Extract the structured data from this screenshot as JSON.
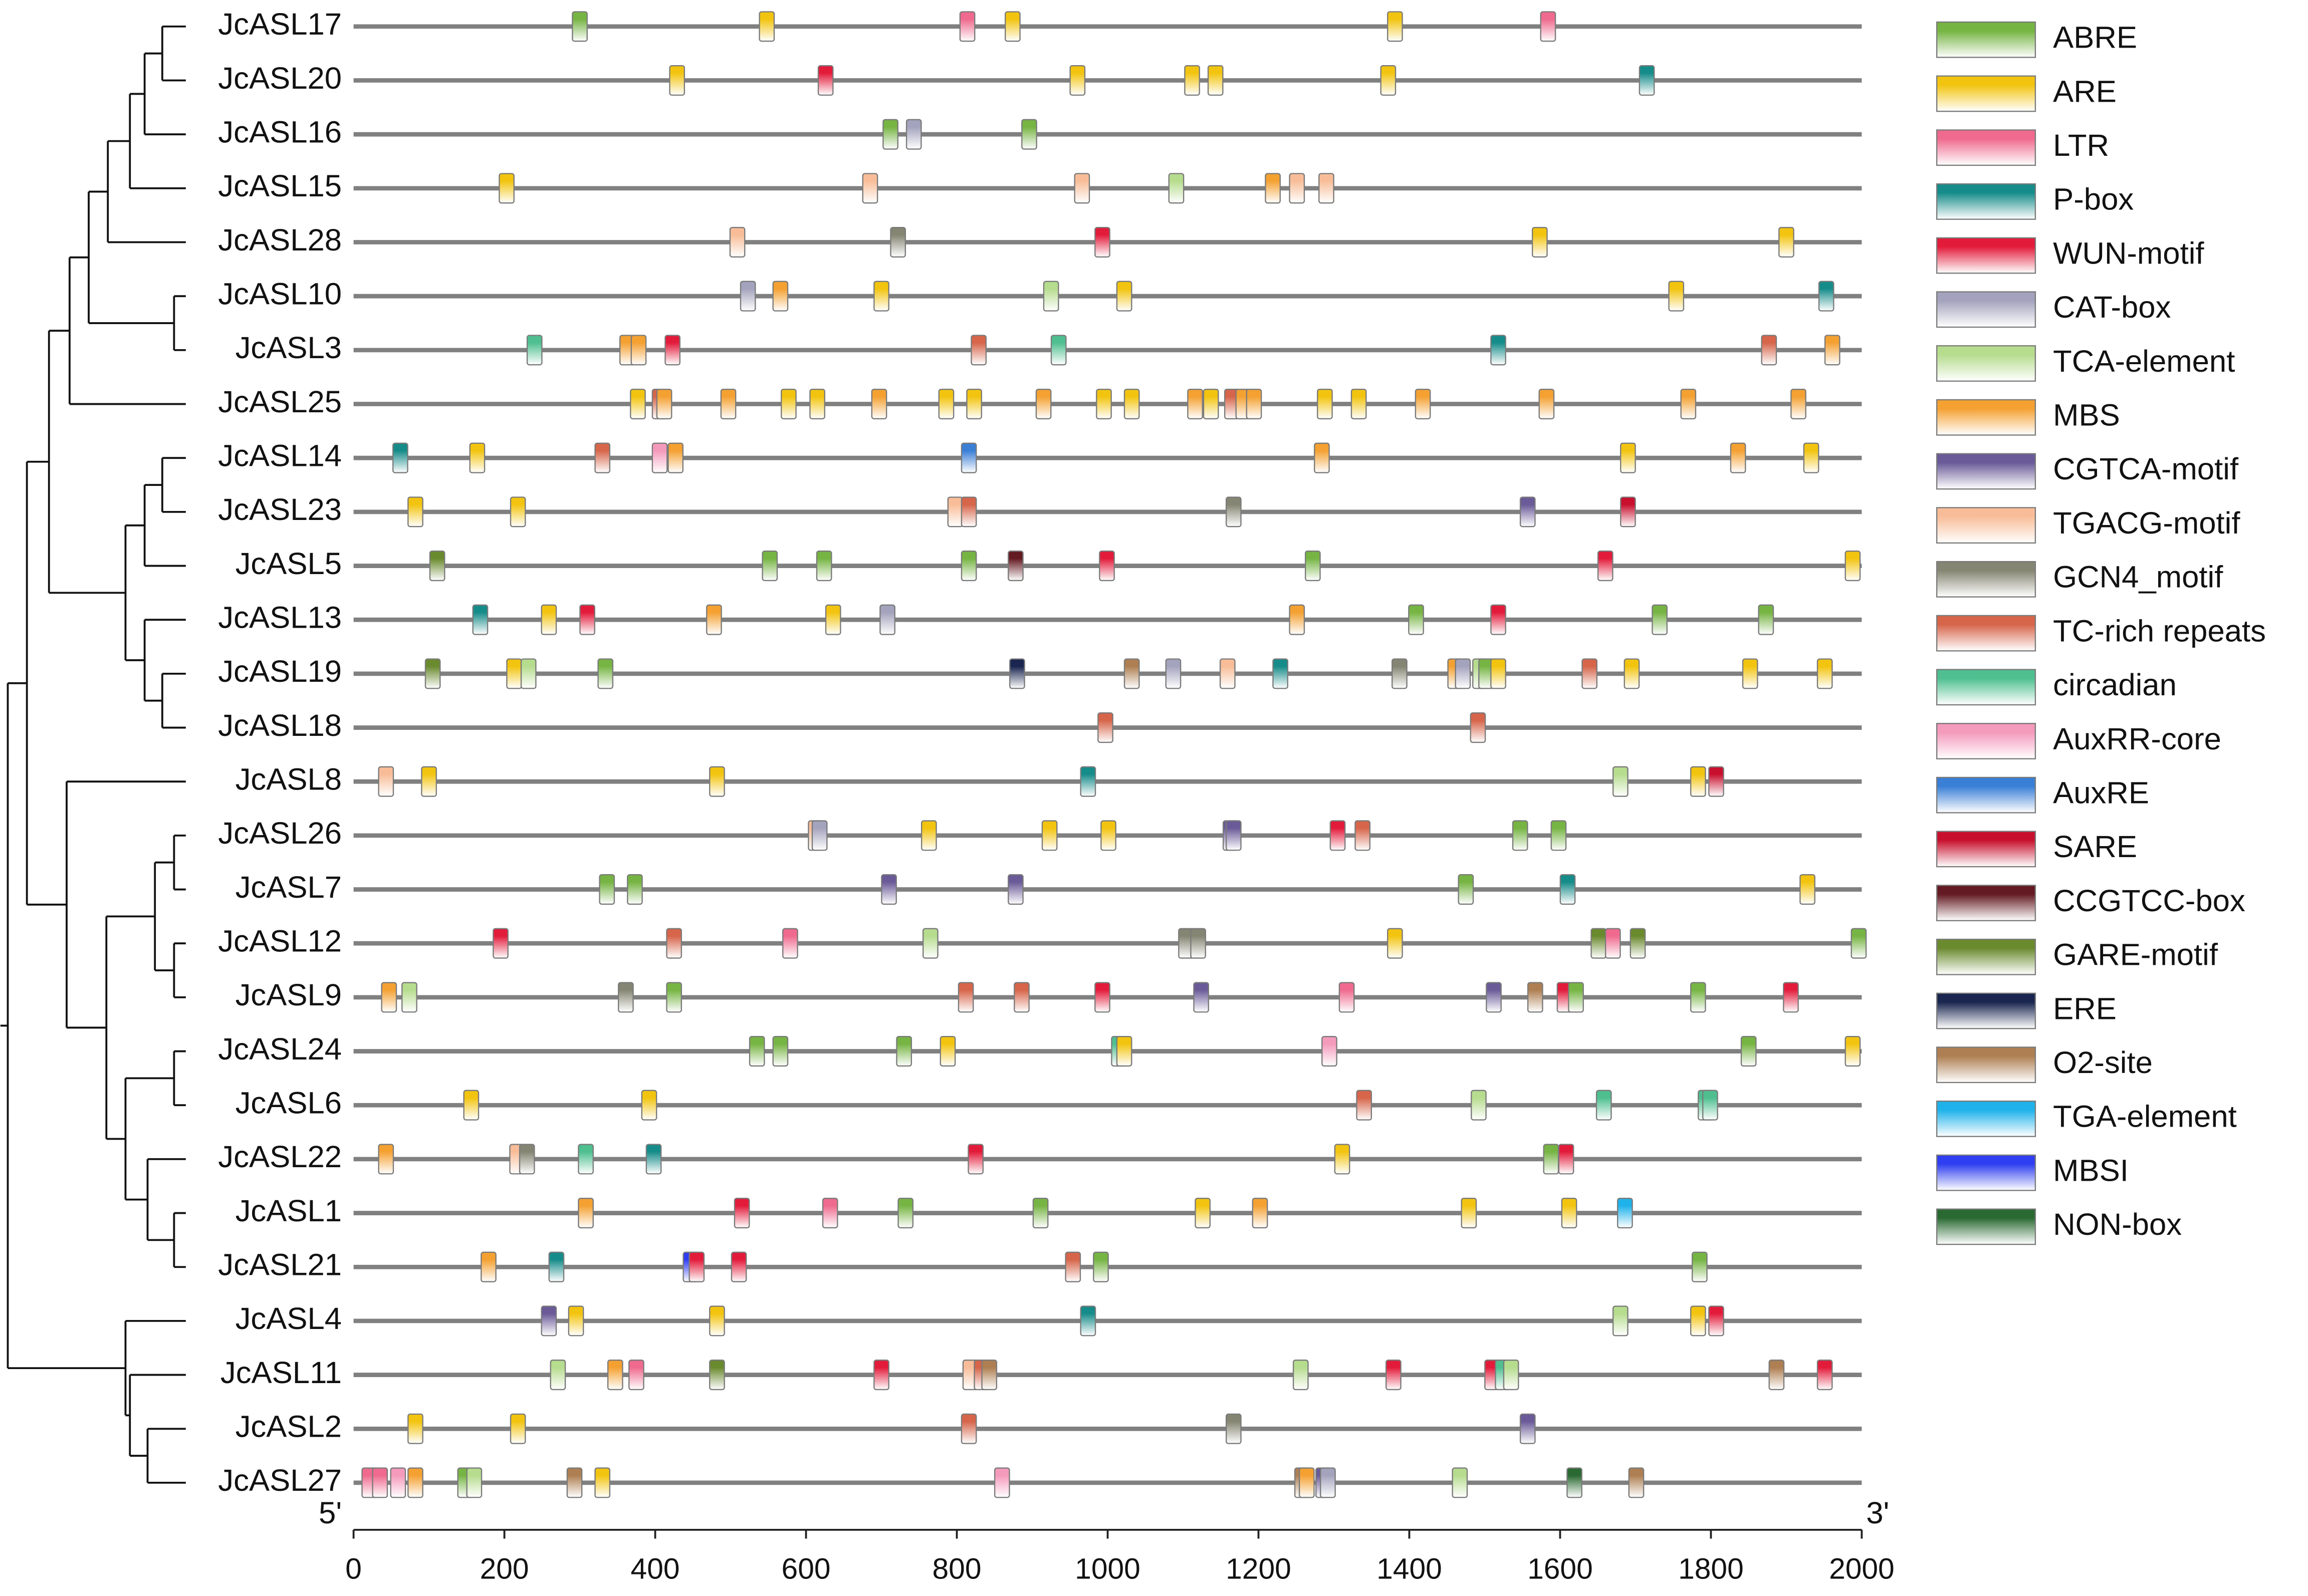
{
  "chart_data": {
    "type": "motif-map",
    "xlim": [
      0,
      2000
    ],
    "xticks": [
      0,
      200,
      400,
      600,
      800,
      1000,
      1200,
      1400,
      1600,
      1800,
      2000
    ],
    "start_label": "5'",
    "end_label": "3'",
    "legend": [
      {
        "name": "ABRE",
        "color": "#76b443"
      },
      {
        "name": "ARE",
        "color": "#f2c40f"
      },
      {
        "name": "LTR",
        "color": "#ef6a8e"
      },
      {
        "name": "P-box",
        "color": "#168c8a"
      },
      {
        "name": "WUN-motif",
        "color": "#e31b3b"
      },
      {
        "name": "CAT-box",
        "color": "#a4a3bd"
      },
      {
        "name": "TCA-element",
        "color": "#b6dc8e"
      },
      {
        "name": "MBS",
        "color": "#f4a132"
      },
      {
        "name": "CGTCA-motif",
        "color": "#6a5a98"
      },
      {
        "name": "TGACG-motif",
        "color": "#f8bd98"
      },
      {
        "name": "GCN4_motif",
        "color": "#858573"
      },
      {
        "name": "TC-rich repeats",
        "color": "#d6654a"
      },
      {
        "name": "circadian",
        "color": "#4fbf90"
      },
      {
        "name": "AuxRR-core",
        "color": "#f49abb"
      },
      {
        "name": "AuxRE",
        "color": "#3a7fd6"
      },
      {
        "name": "SARE",
        "color": "#c8102e"
      },
      {
        "name": "CCGTCC-box",
        "color": "#641a22"
      },
      {
        "name": "GARE-motif",
        "color": "#6a8a2e"
      },
      {
        "name": "ERE",
        "color": "#1a2650"
      },
      {
        "name": "O2-site",
        "color": "#ae7f52"
      },
      {
        "name": "TGA-element",
        "color": "#1fb2ea"
      },
      {
        "name": "MBSI",
        "color": "#2f3ef0"
      },
      {
        "name": "NON-box",
        "color": "#2a6a32"
      }
    ],
    "rows": [
      {
        "name": "JcASL17",
        "motifs": [
          "ABRE",
          "ARE",
          "LTR",
          "ARE",
          "ARE",
          "LTR"
        ],
        "x": [
          300,
          548,
          814,
          874,
          1381,
          1584
        ]
      },
      {
        "name": "JcASL20",
        "motifs": [
          "ARE",
          "WUN-motif",
          "ARE",
          "ARE",
          "ARE",
          "ARE",
          "P-box"
        ],
        "x": [
          429,
          626,
          960,
          1112,
          1143,
          1372,
          1715
        ]
      },
      {
        "name": "JcASL16",
        "motifs": [
          "ABRE",
          "CAT-box",
          "ABRE"
        ],
        "x": [
          712,
          743,
          896
        ]
      },
      {
        "name": "JcASL15",
        "motifs": [
          "ARE",
          "TGACG-motif",
          "TGACG-motif",
          "TCA-element",
          "MBS",
          "TGACG-motif",
          "TGACG-motif"
        ],
        "x": [
          203,
          685,
          966,
          1091,
          1219,
          1251,
          1290
        ]
      },
      {
        "name": "JcASL28",
        "motifs": [
          "TGACG-motif",
          "GCN4_motif",
          "WUN-motif",
          "ARE",
          "ARE"
        ],
        "x": [
          509,
          722,
          993,
          1573,
          1900
        ]
      },
      {
        "name": "JcASL10",
        "motifs": [
          "CAT-box",
          "MBS",
          "ARE",
          "TCA-element",
          "ARE",
          "ARE",
          "P-box"
        ],
        "x": [
          523,
          566,
          700,
          925,
          1022,
          1754,
          1953
        ]
      },
      {
        "name": "JcASL3",
        "motifs": [
          "circadian",
          "MBS",
          "MBS",
          "WUN-motif",
          "TC-rich repeats",
          "circadian",
          "P-box",
          "TC-rich repeats",
          "MBS"
        ],
        "x": [
          240,
          363,
          378,
          423,
          829,
          935,
          1518,
          1877,
          1961
        ]
      },
      {
        "name": "JcASL25",
        "motifs": [
          "ARE",
          "TC-rich repeats",
          "MBS",
          "MBS",
          "ARE",
          "ARE",
          "MBS",
          "ARE",
          "ARE",
          "MBS",
          "ARE",
          "ARE",
          "MBS",
          "ARE",
          "TC-rich repeats",
          "MBS",
          "MBS",
          "ARE",
          "ARE",
          "MBS",
          "MBS",
          "MBS",
          "MBS"
        ],
        "x": [
          377,
          406,
          412,
          497,
          577,
          615,
          697,
          786,
          823,
          915,
          995,
          1032,
          1116,
          1137,
          1165,
          1180,
          1194,
          1288,
          1333,
          1418,
          1582,
          1770,
          1916
        ]
      },
      {
        "name": "JcASL14",
        "motifs": [
          "P-box",
          "ARE",
          "TC-rich repeats",
          "AuxRR-core",
          "MBS",
          "AuxRE",
          "MBS",
          "ARE",
          "MBS",
          "ARE"
        ],
        "x": [
          62,
          164,
          330,
          406,
          427,
          816,
          1284,
          1690,
          1836,
          1933
        ]
      },
      {
        "name": "JcASL23",
        "motifs": [
          "ARE",
          "ARE",
          "TGACG-motif",
          "TC-rich repeats",
          "GCN4_motif",
          "CGTCA-motif",
          "SARE"
        ],
        "x": [
          82,
          218,
          798,
          816,
          1167,
          1557,
          1690
        ]
      },
      {
        "name": "JcASL5",
        "motifs": [
          "GARE-motif",
          "ABRE",
          "ABRE",
          "ABRE",
          "CCGTCC-box",
          "WUN-motif",
          "ABRE",
          "WUN-motif",
          "ARE"
        ],
        "x": [
          111,
          552,
          624,
          816,
          878,
          999,
          1272,
          1660,
          1988
        ]
      },
      {
        "name": "JcASL13",
        "motifs": [
          "P-box",
          "ARE",
          "WUN-motif",
          "MBS",
          "ARE",
          "CAT-box",
          "MBS",
          "ABRE",
          "WUN-motif",
          "ABRE",
          "ABRE"
        ],
        "x": [
          168,
          259,
          310,
          478,
          636,
          708,
          1251,
          1409,
          1518,
          1732,
          1873
        ]
      },
      {
        "name": "JcASL19",
        "motifs": [
          "GARE-motif",
          "ARE",
          "TCA-element",
          "ABRE",
          "ERE",
          "O2-site",
          "CAT-box",
          "TGACG-motif",
          "P-box",
          "GCN4_motif",
          "MBS",
          "CAT-box",
          "TCA-element",
          "ABRE",
          "ARE",
          "TC-rich repeats",
          "ARE",
          "ARE",
          "ARE"
        ],
        "x": [
          105,
          213,
          232,
          334,
          880,
          1032,
          1087,
          1159,
          1229,
          1387,
          1461,
          1471,
          1494,
          1502,
          1518,
          1639,
          1695,
          1852,
          1951
        ]
      },
      {
        "name": "JcASL18",
        "motifs": [
          "TC-rich repeats",
          "TC-rich repeats"
        ],
        "x": [
          997,
          1491
        ]
      },
      {
        "name": "JcASL8",
        "motifs": [
          "TGACG-motif",
          "ARE",
          "ARE",
          "P-box",
          "TCA-element",
          "ARE",
          "SARE"
        ],
        "x": [
          43,
          100,
          482,
          974,
          1680,
          1783,
          1807
        ]
      },
      {
        "name": "JcASL26",
        "motifs": [
          "TGACG-motif",
          "CAT-box",
          "ARE",
          "ARE",
          "ARE",
          "CGTCA-motif",
          "CGTCA-motif",
          "WUN-motif",
          "TC-rich repeats",
          "ABRE",
          "ABRE"
        ],
        "x": [
          613,
          618,
          763,
          923,
          1001,
          1163,
          1167,
          1305,
          1338,
          1547,
          1598
        ]
      },
      {
        "name": "JcASL7",
        "motifs": [
          "ABRE",
          "ABRE",
          "CGTCA-motif",
          "CGTCA-motif",
          "ABRE",
          "P-box",
          "ARE"
        ],
        "x": [
          336,
          373,
          710,
          878,
          1475,
          1610,
          1928
        ]
      },
      {
        "name": "JcASL12",
        "motifs": [
          "WUN-motif",
          "TC-rich repeats",
          "LTR",
          "TCA-element",
          "GCN4_motif",
          "GCN4_motif",
          "ARE",
          "GARE-motif",
          "LTR",
          "GARE-motif",
          "ABRE"
        ],
        "x": [
          195,
          425,
          579,
          765,
          1104,
          1120,
          1381,
          1651,
          1670,
          1703,
          1996
        ]
      },
      {
        "name": "JcASL9",
        "motifs": [
          "MBS",
          "TCA-element",
          "GCN4_motif",
          "ABRE",
          "TC-rich repeats",
          "TC-rich repeats",
          "WUN-motif",
          "CGTCA-motif",
          "LTR",
          "CGTCA-motif",
          "O2-site",
          "WUN-motif",
          "ABRE",
          "ABRE",
          "WUN-motif"
        ],
        "x": [
          47,
          74,
          361,
          425,
          812,
          886,
          993,
          1124,
          1317,
          1512,
          1567,
          1606,
          1621,
          1783,
          1906
        ]
      },
      {
        "name": "JcASL24",
        "motifs": [
          "ABRE",
          "ABRE",
          "ABRE",
          "ARE",
          "circadian",
          "ARE",
          "AuxRR-core",
          "ABRE",
          "ARE"
        ],
        "x": [
          535,
          566,
          730,
          788,
          1015,
          1022,
          1294,
          1850,
          1988
        ]
      },
      {
        "name": "JcASL6",
        "motifs": [
          "ARE",
          "ARE",
          "TC-rich repeats",
          "TCA-element",
          "circadian",
          "circadian",
          "circadian"
        ],
        "x": [
          156,
          392,
          1340,
          1492,
          1658,
          1793,
          1799
        ]
      },
      {
        "name": "JcASL22",
        "motifs": [
          "MBS",
          "TGACG-motif",
          "GCN4_motif",
          "circadian",
          "P-box",
          "WUN-motif",
          "ARE",
          "ABRE",
          "WUN-motif"
        ],
        "x": [
          43,
          217,
          230,
          308,
          398,
          825,
          1311,
          1588,
          1608
        ]
      },
      {
        "name": "JcASL1",
        "motifs": [
          "MBS",
          "WUN-motif",
          "LTR",
          "ABRE",
          "ABRE",
          "ARE",
          "MBS",
          "ARE",
          "ARE",
          "TGA-element"
        ],
        "x": [
          308,
          515,
          632,
          732,
          911,
          1126,
          1202,
          1479,
          1612,
          1686
        ]
      },
      {
        "name": "JcASL21",
        "motifs": [
          "MBS",
          "P-box",
          "MBSI",
          "WUN-motif",
          "WUN-motif",
          "TC-rich repeats",
          "ABRE",
          "ABRE"
        ],
        "x": [
          179,
          269,
          447,
          455,
          511,
          954,
          991,
          1785
        ]
      },
      {
        "name": "JcASL4",
        "motifs": [
          "CGTCA-motif",
          "ARE",
          "ARE",
          "P-box",
          "TCA-element",
          "ARE",
          "WUN-motif"
        ],
        "x": [
          259,
          295,
          482,
          974,
          1680,
          1783,
          1807
        ]
      },
      {
        "name": "JcASL11",
        "motifs": [
          "TCA-element",
          "MBS",
          "LTR",
          "GARE-motif",
          "WUN-motif",
          "TGACG-motif",
          "TC-rich repeats",
          "O2-site",
          "TCA-element",
          "WUN-motif",
          "WUN-motif",
          "circadian",
          "TCA-element",
          "O2-site",
          "WUN-motif"
        ],
        "x": [
          271,
          347,
          375,
          482,
          700,
          818,
          833,
          843,
          1256,
          1379,
          1510,
          1524,
          1535,
          1887,
          1951
        ]
      },
      {
        "name": "JcASL2",
        "motifs": [
          "ARE",
          "ARE",
          "TC-rich repeats",
          "GCN4_motif",
          "CGTCA-motif"
        ],
        "x": [
          82,
          218,
          816,
          1167,
          1557
        ]
      },
      {
        "name": "JcASL27",
        "motifs": [
          "LTR",
          "LTR",
          "AuxRR-core",
          "MBS",
          "ABRE",
          "TCA-element",
          "O2-site",
          "ARE",
          "AuxRR-core",
          "O2-site",
          "MBS",
          "CGTCA-motif",
          "CAT-box",
          "TCA-element",
          "NON-box",
          "O2-site"
        ],
        "x": [
          21,
          35,
          59,
          82,
          148,
          160,
          293,
          330,
          860,
          1258,
          1264,
          1286,
          1292,
          1467,
          1619,
          1701
        ]
      }
    ]
  }
}
